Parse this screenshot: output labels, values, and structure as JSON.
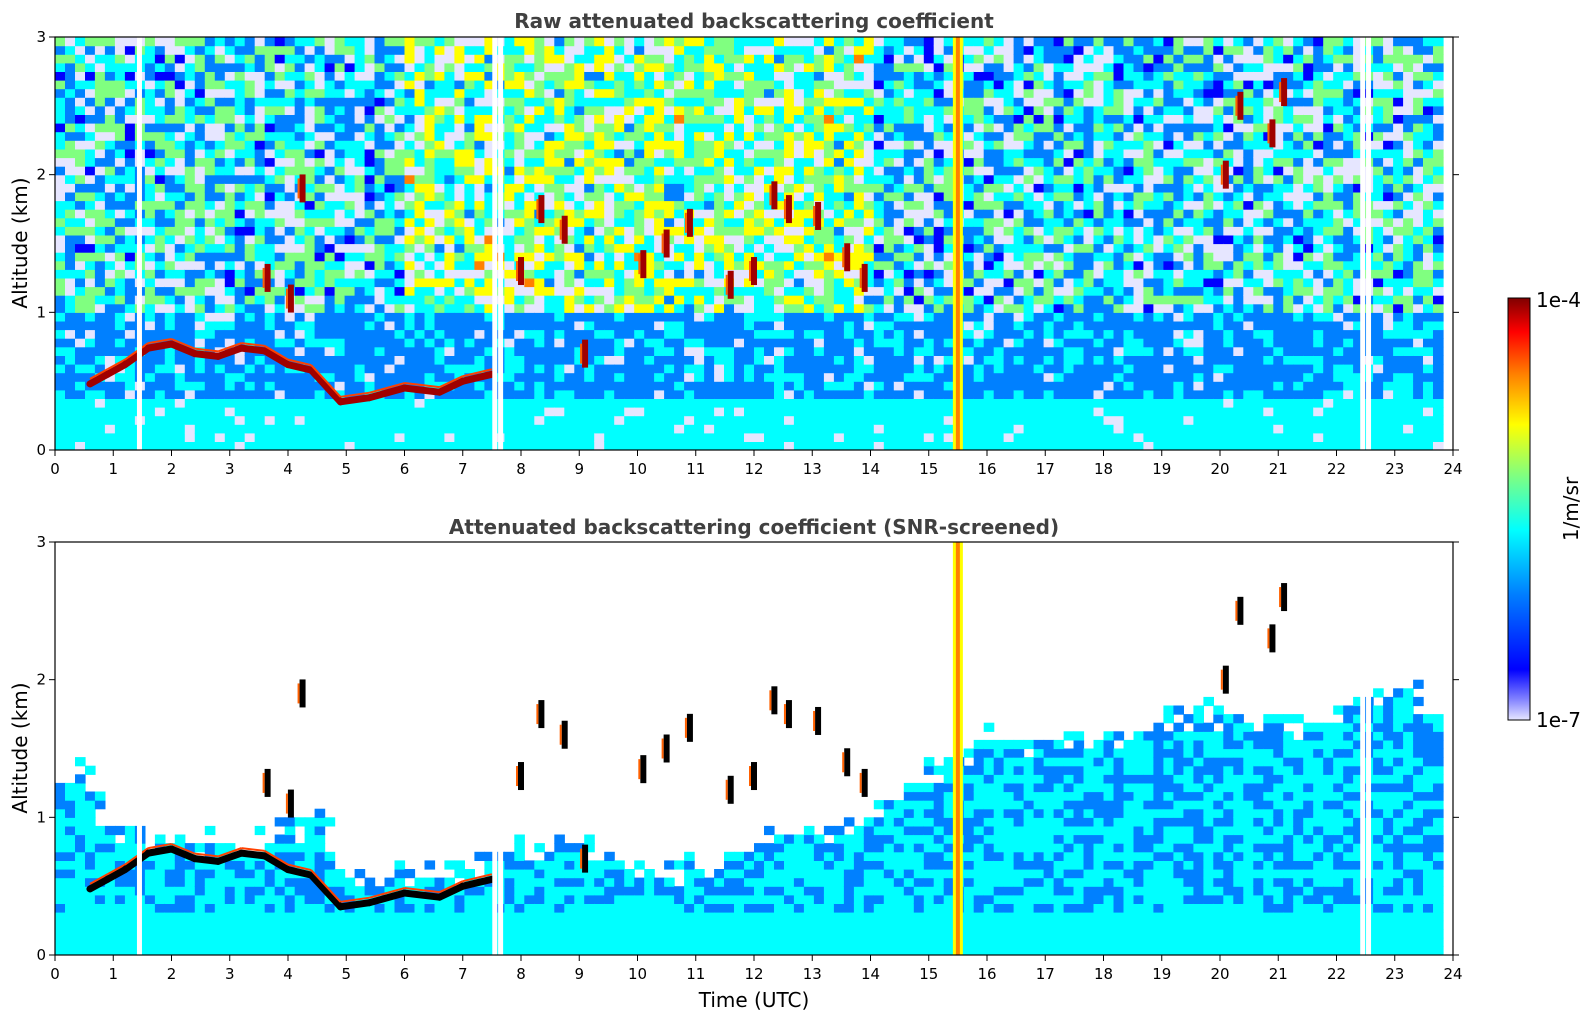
{
  "chart_data": [
    {
      "type": "heatmap",
      "title": "Raw attenuated backscattering coefficient",
      "xlabel": "",
      "ylabel": "Altitude (km)",
      "xlim": [
        0,
        24
      ],
      "ylim": [
        0,
        3
      ],
      "xticks": [
        "0",
        "1",
        "2",
        "3",
        "4",
        "5",
        "6",
        "7",
        "8",
        "9",
        "10",
        "11",
        "12",
        "13",
        "14",
        "15",
        "16",
        "17",
        "18",
        "19",
        "20",
        "21",
        "22",
        "23",
        "24"
      ],
      "yticks": [
        "0",
        "1",
        "2",
        "3"
      ],
      "screened": false,
      "boundary_layer_cloud": [
        {
          "t": 0.6,
          "z": 0.48
        },
        {
          "t": 0.9,
          "z": 0.55
        },
        {
          "t": 1.2,
          "z": 0.62
        },
        {
          "t": 1.6,
          "z": 0.74
        },
        {
          "t": 2.0,
          "z": 0.77
        },
        {
          "t": 2.4,
          "z": 0.7
        },
        {
          "t": 2.8,
          "z": 0.68
        },
        {
          "t": 3.2,
          "z": 0.74
        },
        {
          "t": 3.6,
          "z": 0.72
        },
        {
          "t": 4.0,
          "z": 0.62
        },
        {
          "t": 4.4,
          "z": 0.58
        },
        {
          "t": 4.9,
          "z": 0.35
        },
        {
          "t": 5.4,
          "z": 0.38
        },
        {
          "t": 6.0,
          "z": 0.45
        },
        {
          "t": 6.6,
          "z": 0.42
        },
        {
          "t": 7.0,
          "z": 0.5
        },
        {
          "t": 7.5,
          "z": 0.55
        }
      ],
      "cloud_patches": [
        {
          "t": 4.25,
          "z": 1.9
        },
        {
          "t": 3.65,
          "z": 1.25
        },
        {
          "t": 4.05,
          "z": 1.1
        },
        {
          "t": 8.0,
          "z": 1.3
        },
        {
          "t": 8.35,
          "z": 1.75
        },
        {
          "t": 8.75,
          "z": 1.6
        },
        {
          "t": 9.1,
          "z": 0.7
        },
        {
          "t": 10.1,
          "z": 1.35
        },
        {
          "t": 10.5,
          "z": 1.5
        },
        {
          "t": 10.9,
          "z": 1.65
        },
        {
          "t": 11.6,
          "z": 1.2
        },
        {
          "t": 12.0,
          "z": 1.3
        },
        {
          "t": 12.35,
          "z": 1.85
        },
        {
          "t": 12.6,
          "z": 1.75
        },
        {
          "t": 13.1,
          "z": 1.7
        },
        {
          "t": 13.6,
          "z": 1.4
        },
        {
          "t": 13.9,
          "z": 1.25
        },
        {
          "t": 20.1,
          "z": 2.0
        },
        {
          "t": 20.35,
          "z": 2.5
        },
        {
          "t": 20.9,
          "z": 2.3
        },
        {
          "t": 21.1,
          "z": 2.6
        }
      ],
      "precip_column": {
        "t": 15.5
      },
      "data_gaps": [
        1.45,
        7.55,
        7.65,
        22.45,
        22.55
      ]
    },
    {
      "type": "heatmap",
      "title": "Attenuated backscattering coefficient (SNR-screened)",
      "xlabel": "Time (UTC)",
      "ylabel": "Altitude (km)",
      "xlim": [
        0,
        24
      ],
      "ylim": [
        0,
        3
      ],
      "xticks": [
        "0",
        "1",
        "2",
        "3",
        "4",
        "5",
        "6",
        "7",
        "8",
        "9",
        "10",
        "11",
        "12",
        "13",
        "14",
        "15",
        "16",
        "17",
        "18",
        "19",
        "20",
        "21",
        "22",
        "23",
        "24"
      ],
      "yticks": [
        "0",
        "1",
        "2",
        "3"
      ],
      "screened": true,
      "aerosol_top": [
        {
          "t": 0.0,
          "z": 1.2
        },
        {
          "t": 0.5,
          "z": 1.35
        },
        {
          "t": 1.0,
          "z": 0.85
        },
        {
          "t": 2.0,
          "z": 0.85
        },
        {
          "t": 3.0,
          "z": 0.78
        },
        {
          "t": 4.0,
          "z": 0.9
        },
        {
          "t": 4.6,
          "z": 1.0
        },
        {
          "t": 5.0,
          "z": 0.6
        },
        {
          "t": 6.0,
          "z": 0.55
        },
        {
          "t": 7.0,
          "z": 0.65
        },
        {
          "t": 8.0,
          "z": 0.75
        },
        {
          "t": 9.0,
          "z": 0.8
        },
        {
          "t": 10.0,
          "z": 0.6
        },
        {
          "t": 11.0,
          "z": 0.65
        },
        {
          "t": 12.0,
          "z": 0.8
        },
        {
          "t": 13.0,
          "z": 0.9
        },
        {
          "t": 14.0,
          "z": 1.0
        },
        {
          "t": 15.0,
          "z": 1.3
        },
        {
          "t": 16.0,
          "z": 1.6
        },
        {
          "t": 17.0,
          "z": 1.55
        },
        {
          "t": 18.0,
          "z": 1.6
        },
        {
          "t": 19.0,
          "z": 1.7
        },
        {
          "t": 20.0,
          "z": 1.75
        },
        {
          "t": 21.0,
          "z": 1.65
        },
        {
          "t": 22.0,
          "z": 1.75
        },
        {
          "t": 23.0,
          "z": 1.9
        },
        {
          "t": 23.8,
          "z": 1.8
        }
      ],
      "data_gaps": [
        1.45,
        7.55,
        7.65,
        22.45,
        22.55
      ]
    }
  ],
  "colorbar": {
    "label": "1/m/sr",
    "max_label": "1e-4",
    "min_label": "1e-7",
    "colors": [
      "#e6e6ff",
      "#0000ff",
      "#0080ff",
      "#00ffff",
      "#80ff80",
      "#ffff00",
      "#ff8000",
      "#ff0000",
      "#800000"
    ]
  }
}
